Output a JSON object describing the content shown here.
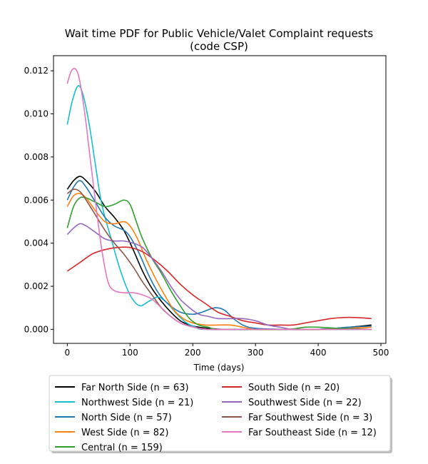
{
  "chart_data": {
    "type": "line",
    "title": "Wait time PDF for Public Vehicle/Valet Complaint  requests",
    "subtitle": "(code CSP)",
    "xlabel": "Time (days)",
    "ylabel": "",
    "xlim": [
      -22,
      508
    ],
    "ylim": [
      -0.00065,
      0.0127
    ],
    "xticks": [
      0,
      100,
      200,
      300,
      400,
      500
    ],
    "xtick_labels": [
      "0",
      "100",
      "200",
      "300",
      "400",
      "500"
    ],
    "yticks": [
      0,
      0.002,
      0.004,
      0.006,
      0.008,
      0.01,
      0.012
    ],
    "ytick_labels": [
      "0.000",
      "0.002",
      "0.004",
      "0.006",
      "0.008",
      "0.010",
      "0.012"
    ],
    "grid": false,
    "legend_position": "below",
    "series": [
      {
        "name": "Far North Side (n = 63)",
        "color": "#000000",
        "points": [
          [
            0,
            0.0065
          ],
          [
            10,
            0.0069
          ],
          [
            20,
            0.0071
          ],
          [
            30,
            0.0069
          ],
          [
            45,
            0.0064
          ],
          [
            60,
            0.0057
          ],
          [
            75,
            0.0052
          ],
          [
            90,
            0.0046
          ],
          [
            105,
            0.0037
          ],
          [
            120,
            0.0027
          ],
          [
            135,
            0.0019
          ],
          [
            150,
            0.0013
          ],
          [
            165,
            0.0008
          ],
          [
            180,
            0.0004
          ],
          [
            195,
            0.0002
          ],
          [
            210,
            0.0001
          ],
          [
            225,
            5e-05
          ],
          [
            250,
            0.0
          ],
          [
            300,
            0.0
          ],
          [
            350,
            0.0
          ],
          [
            400,
            0.0
          ],
          [
            450,
            0.0001
          ],
          [
            485,
            0.0002
          ]
        ]
      },
      {
        "name": "Northwest Side (n = 21)",
        "color": "#17becf",
        "points": [
          [
            0,
            0.0095
          ],
          [
            8,
            0.0106
          ],
          [
            17,
            0.0113
          ],
          [
            25,
            0.0109
          ],
          [
            35,
            0.0095
          ],
          [
            45,
            0.0076
          ],
          [
            55,
            0.0058
          ],
          [
            70,
            0.0042
          ],
          [
            85,
            0.0027
          ],
          [
            100,
            0.0016
          ],
          [
            115,
            0.0011
          ],
          [
            130,
            0.0013
          ],
          [
            145,
            0.0015
          ],
          [
            160,
            0.0012
          ],
          [
            175,
            0.0007
          ],
          [
            190,
            0.0003
          ],
          [
            205,
            0.0001
          ],
          [
            220,
            0.0
          ],
          [
            300,
            0.0
          ],
          [
            400,
            0.0
          ],
          [
            485,
            0.0
          ]
        ]
      },
      {
        "name": "North Side (n = 57)",
        "color": "#1f77b4",
        "points": [
          [
            0,
            0.006
          ],
          [
            10,
            0.0066
          ],
          [
            20,
            0.0069
          ],
          [
            30,
            0.0066
          ],
          [
            45,
            0.0059
          ],
          [
            60,
            0.0052
          ],
          [
            75,
            0.0048
          ],
          [
            90,
            0.0046
          ],
          [
            100,
            0.0043
          ],
          [
            115,
            0.0035
          ],
          [
            130,
            0.0025
          ],
          [
            145,
            0.0017
          ],
          [
            160,
            0.0012
          ],
          [
            180,
            0.0008
          ],
          [
            200,
            0.0007
          ],
          [
            215,
            0.0008
          ],
          [
            235,
            0.001
          ],
          [
            250,
            0.0009
          ],
          [
            265,
            0.0005
          ],
          [
            280,
            0.0002
          ],
          [
            300,
            5e-05
          ],
          [
            350,
            0.0
          ],
          [
            400,
            0.0
          ],
          [
            450,
            0.0001
          ],
          [
            485,
            0.00015
          ]
        ]
      },
      {
        "name": "West Side (n = 82)",
        "color": "#ff7f0e",
        "points": [
          [
            0,
            0.0057
          ],
          [
            10,
            0.0062
          ],
          [
            20,
            0.0063
          ],
          [
            30,
            0.0061
          ],
          [
            45,
            0.0055
          ],
          [
            60,
            0.005
          ],
          [
            75,
            0.0049
          ],
          [
            90,
            0.005
          ],
          [
            100,
            0.0048
          ],
          [
            112,
            0.0042
          ],
          [
            125,
            0.0033
          ],
          [
            140,
            0.0024
          ],
          [
            155,
            0.0016
          ],
          [
            170,
            0.0009
          ],
          [
            185,
            0.0005
          ],
          [
            200,
            0.0003
          ],
          [
            220,
            0.0002
          ],
          [
            240,
            0.0002
          ],
          [
            260,
            0.0002
          ],
          [
            280,
            0.0001
          ],
          [
            300,
            0.0
          ],
          [
            350,
            0.0
          ],
          [
            400,
            0.0
          ],
          [
            450,
            5e-05
          ],
          [
            485,
            0.0001
          ]
        ]
      },
      {
        "name": "Central (n = 159)",
        "color": "#2ca02c",
        "points": [
          [
            0,
            0.0047
          ],
          [
            10,
            0.0057
          ],
          [
            20,
            0.0061
          ],
          [
            30,
            0.0061
          ],
          [
            45,
            0.0059
          ],
          [
            60,
            0.0057
          ],
          [
            75,
            0.0058
          ],
          [
            90,
            0.006
          ],
          [
            100,
            0.0058
          ],
          [
            110,
            0.005
          ],
          [
            120,
            0.0042
          ],
          [
            135,
            0.0033
          ],
          [
            150,
            0.0026
          ],
          [
            165,
            0.0018
          ],
          [
            180,
            0.0011
          ],
          [
            195,
            0.0005
          ],
          [
            210,
            0.0002
          ],
          [
            225,
            0.0001
          ],
          [
            240,
            0.0
          ],
          [
            300,
            0.0
          ],
          [
            350,
            0.0
          ],
          [
            380,
            0.0001
          ],
          [
            400,
            0.0001
          ],
          [
            430,
            5e-05
          ],
          [
            485,
            0.0
          ]
        ]
      },
      {
        "name": "South Side (n = 20)",
        "color": "#d62728",
        "points": [
          [
            0,
            0.0027
          ],
          [
            20,
            0.0031
          ],
          [
            40,
            0.0035
          ],
          [
            60,
            0.0037
          ],
          [
            80,
            0.0038
          ],
          [
            100,
            0.0038
          ],
          [
            120,
            0.0036
          ],
          [
            140,
            0.0032
          ],
          [
            160,
            0.0027
          ],
          [
            180,
            0.0021
          ],
          [
            200,
            0.0016
          ],
          [
            220,
            0.0012
          ],
          [
            240,
            0.0008
          ],
          [
            260,
            0.0006
          ],
          [
            280,
            0.0004
          ],
          [
            300,
            0.0003
          ],
          [
            320,
            0.0002
          ],
          [
            340,
            0.0002
          ],
          [
            360,
            0.0002
          ],
          [
            380,
            0.0003
          ],
          [
            400,
            0.0004
          ],
          [
            420,
            0.0005
          ],
          [
            440,
            0.00055
          ],
          [
            460,
            0.00055
          ],
          [
            485,
            0.0005
          ]
        ]
      },
      {
        "name": "Southwest Side (n = 22)",
        "color": "#9467bd",
        "points": [
          [
            0,
            0.0044
          ],
          [
            10,
            0.0047
          ],
          [
            20,
            0.0049
          ],
          [
            30,
            0.0048
          ],
          [
            45,
            0.0045
          ],
          [
            60,
            0.0042
          ],
          [
            75,
            0.0041
          ],
          [
            90,
            0.0041
          ],
          [
            105,
            0.004
          ],
          [
            120,
            0.0038
          ],
          [
            135,
            0.0033
          ],
          [
            150,
            0.0027
          ],
          [
            165,
            0.002
          ],
          [
            180,
            0.0014
          ],
          [
            195,
            0.001
          ],
          [
            210,
            0.0007
          ],
          [
            225,
            0.0006
          ],
          [
            240,
            0.0005
          ],
          [
            260,
            0.0005
          ],
          [
            280,
            0.0005
          ],
          [
            300,
            0.0004
          ],
          [
            320,
            0.0002
          ],
          [
            340,
            0.0001
          ],
          [
            360,
            0.0
          ],
          [
            400,
            0.0
          ],
          [
            485,
            0.0
          ]
        ]
      },
      {
        "name": "Far Southwest Side (n = 3)",
        "color": "#8c564b",
        "points": [
          [
            0,
            0.0063
          ],
          [
            10,
            0.0065
          ],
          [
            20,
            0.0064
          ],
          [
            30,
            0.006
          ],
          [
            45,
            0.0053
          ],
          [
            60,
            0.0046
          ],
          [
            75,
            0.004
          ],
          [
            90,
            0.0035
          ],
          [
            105,
            0.0029
          ],
          [
            120,
            0.0022
          ],
          [
            135,
            0.0016
          ],
          [
            150,
            0.001
          ],
          [
            165,
            0.0006
          ],
          [
            180,
            0.0003
          ],
          [
            195,
            0.00015
          ],
          [
            210,
            5e-05
          ],
          [
            225,
            0.0
          ],
          [
            300,
            0.0
          ],
          [
            400,
            0.0
          ],
          [
            485,
            0.0
          ]
        ]
      },
      {
        "name": "Far Southeast Side (n = 12)",
        "color": "#e377c2",
        "points": [
          [
            0,
            0.0114
          ],
          [
            5,
            0.0119
          ],
          [
            10,
            0.0121
          ],
          [
            15,
            0.012
          ],
          [
            20,
            0.0115
          ],
          [
            28,
            0.01
          ],
          [
            35,
            0.0083
          ],
          [
            45,
            0.0059
          ],
          [
            55,
            0.0037
          ],
          [
            65,
            0.0022
          ],
          [
            75,
            0.0018
          ],
          [
            90,
            0.0017
          ],
          [
            105,
            0.0017
          ],
          [
            120,
            0.0016
          ],
          [
            135,
            0.0014
          ],
          [
            150,
            0.001
          ],
          [
            165,
            0.0006
          ],
          [
            180,
            0.0003
          ],
          [
            195,
            0.00015
          ],
          [
            210,
            5e-05
          ],
          [
            225,
            0.0
          ],
          [
            300,
            0.0
          ],
          [
            400,
            0.0
          ],
          [
            485,
            0.0
          ]
        ]
      }
    ]
  }
}
